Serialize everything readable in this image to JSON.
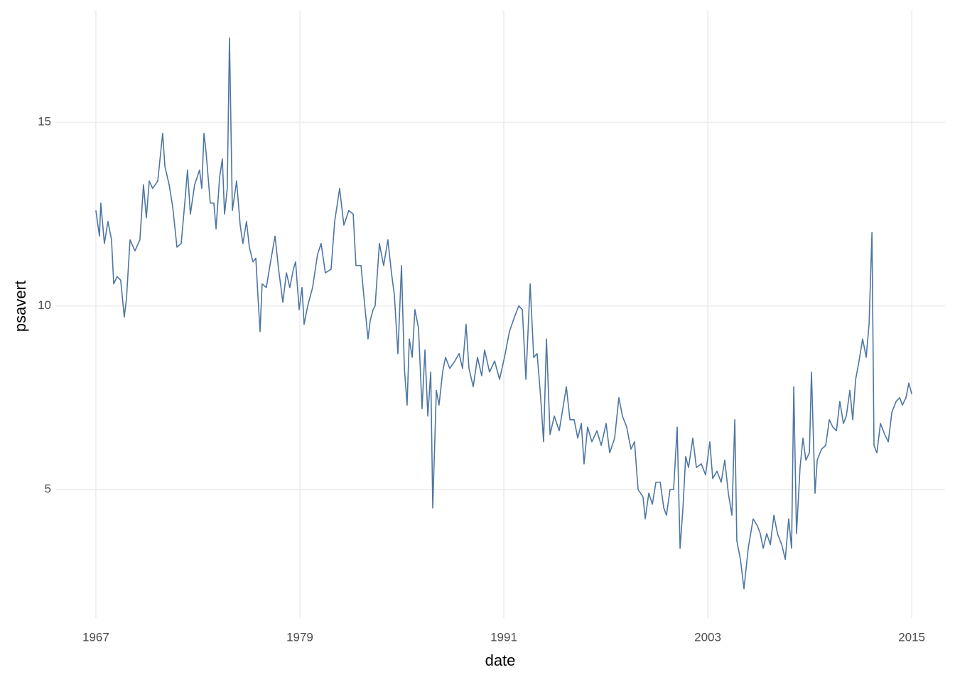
{
  "chart_data": {
    "type": "line",
    "x_label": "date",
    "y_label": "psavert",
    "color": "#4e76a3",
    "xlim": [
      1964.62,
      2016.96
    ],
    "ylim": [
      1.5,
      18.04
    ],
    "xticks": [
      1967,
      1979,
      1991,
      2003,
      2015
    ],
    "yticks": [
      5,
      10,
      15
    ],
    "grid": true,
    "x": [
      1967.0,
      1967.21,
      1967.29,
      1967.5,
      1967.71,
      1967.92,
      1968.05,
      1968.25,
      1968.46,
      1968.67,
      1968.8,
      1969.01,
      1969.3,
      1969.59,
      1969.8,
      1969.97,
      1970.14,
      1970.34,
      1970.64,
      1970.93,
      1971.06,
      1971.31,
      1971.52,
      1971.77,
      1972.02,
      1972.23,
      1972.39,
      1972.56,
      1972.81,
      1973.1,
      1973.23,
      1973.36,
      1973.48,
      1973.73,
      1973.94,
      1974.07,
      1974.28,
      1974.44,
      1974.57,
      1974.73,
      1974.86,
      1975.03,
      1975.28,
      1975.49,
      1975.65,
      1975.86,
      1976.03,
      1976.24,
      1976.41,
      1976.53,
      1976.66,
      1976.78,
      1977.03,
      1977.24,
      1977.54,
      1977.75,
      1978.0,
      1978.21,
      1978.41,
      1978.62,
      1978.75,
      1978.96,
      1979.13,
      1979.25,
      1979.46,
      1979.75,
      1980.04,
      1980.25,
      1980.5,
      1980.84,
      1981.05,
      1981.34,
      1981.59,
      1981.88,
      1982.14,
      1982.3,
      1982.6,
      1982.8,
      1983.01,
      1983.14,
      1983.31,
      1983.43,
      1983.68,
      1983.93,
      1984.18,
      1984.39,
      1984.56,
      1984.77,
      1984.98,
      1985.15,
      1985.31,
      1985.44,
      1985.61,
      1985.77,
      1985.98,
      1986.19,
      1986.36,
      1986.53,
      1986.7,
      1986.82,
      1987.03,
      1987.19,
      1987.4,
      1987.57,
      1987.82,
      1988.12,
      1988.37,
      1988.57,
      1988.78,
      1988.95,
      1989.2,
      1989.45,
      1989.7,
      1989.87,
      1990.16,
      1990.46,
      1990.75,
      1991.04,
      1991.33,
      1991.63,
      1991.88,
      1992.09,
      1992.3,
      1992.55,
      1992.76,
      1992.96,
      1993.17,
      1993.34,
      1993.51,
      1993.72,
      1993.97,
      1994.26,
      1994.47,
      1994.68,
      1994.89,
      1995.14,
      1995.35,
      1995.56,
      1995.72,
      1995.93,
      1996.18,
      1996.48,
      1996.73,
      1997.02,
      1997.23,
      1997.52,
      1997.77,
      1997.98,
      1998.23,
      1998.48,
      1998.69,
      1998.9,
      1999.19,
      1999.32,
      1999.53,
      1999.74,
      1999.95,
      2000.2,
      2000.41,
      2000.57,
      2000.78,
      2000.99,
      2001.2,
      2001.37,
      2001.54,
      2001.7,
      2001.87,
      2002.12,
      2002.33,
      2002.62,
      2002.87,
      2003.12,
      2003.29,
      2003.54,
      2003.79,
      2004.0,
      2004.21,
      2004.42,
      2004.59,
      2004.71,
      2004.92,
      2005.13,
      2005.38,
      2005.67,
      2005.93,
      2006.09,
      2006.26,
      2006.47,
      2006.68,
      2006.89,
      2007.1,
      2007.35,
      2007.56,
      2007.76,
      2007.93,
      2008.06,
      2008.22,
      2008.43,
      2008.6,
      2008.77,
      2008.98,
      2009.1,
      2009.31,
      2009.44,
      2009.69,
      2009.94,
      2010.15,
      2010.36,
      2010.57,
      2010.77,
      2010.98,
      2011.15,
      2011.36,
      2011.53,
      2011.7,
      2011.9,
      2012.11,
      2012.32,
      2012.49,
      2012.66,
      2012.78,
      2012.95,
      2013.16,
      2013.41,
      2013.62,
      2013.83,
      2014.08,
      2014.29,
      2014.45,
      2014.66,
      2014.83,
      2015.0
    ],
    "values": [
      12.6,
      11.9,
      12.8,
      11.7,
      12.3,
      11.8,
      10.6,
      10.8,
      10.7,
      9.7,
      10.2,
      11.8,
      11.5,
      11.8,
      13.3,
      12.4,
      13.4,
      13.2,
      13.4,
      14.7,
      13.8,
      13.3,
      12.7,
      11.6,
      11.7,
      12.8,
      13.7,
      12.5,
      13.3,
      13.7,
      13.2,
      14.7,
      14.2,
      12.8,
      12.8,
      12.1,
      13.5,
      14.0,
      12.5,
      13.2,
      17.3,
      12.6,
      13.4,
      12.2,
      11.7,
      12.3,
      11.6,
      11.2,
      11.3,
      10.3,
      9.3,
      10.6,
      10.5,
      11.1,
      11.9,
      11.0,
      10.1,
      10.9,
      10.5,
      11.0,
      11.2,
      9.9,
      10.5,
      9.5,
      10.0,
      10.5,
      11.4,
      11.7,
      10.9,
      11.0,
      12.3,
      13.2,
      12.2,
      12.6,
      12.5,
      11.1,
      11.1,
      10.1,
      9.1,
      9.6,
      9.9,
      10.0,
      11.7,
      11.1,
      11.8,
      10.9,
      10.3,
      8.7,
      11.1,
      8.3,
      7.3,
      9.1,
      8.6,
      9.9,
      9.4,
      7.2,
      8.8,
      7.0,
      8.2,
      4.5,
      7.7,
      7.3,
      8.2,
      8.6,
      8.3,
      8.5,
      8.7,
      8.3,
      9.5,
      8.3,
      7.8,
      8.6,
      8.1,
      8.8,
      8.2,
      8.5,
      8.0,
      8.6,
      9.3,
      9.7,
      10.0,
      9.9,
      8.0,
      10.6,
      8.6,
      8.7,
      7.5,
      6.3,
      9.1,
      6.5,
      7.0,
      6.6,
      7.2,
      7.8,
      6.9,
      6.9,
      6.4,
      6.8,
      5.7,
      6.7,
      6.3,
      6.6,
      6.2,
      6.8,
      6.0,
      6.4,
      7.5,
      7.0,
      6.7,
      6.1,
      6.3,
      5.0,
      4.8,
      4.2,
      4.9,
      4.6,
      5.2,
      5.2,
      4.5,
      4.3,
      5.0,
      5.0,
      6.7,
      3.4,
      4.5,
      5.9,
      5.6,
      6.4,
      5.6,
      5.7,
      5.4,
      6.3,
      5.3,
      5.5,
      5.2,
      5.8,
      4.9,
      4.3,
      6.9,
      3.6,
      3.1,
      2.3,
      3.4,
      4.2,
      4.0,
      3.8,
      3.4,
      3.8,
      3.5,
      4.3,
      3.8,
      3.5,
      3.1,
      4.2,
      3.4,
      7.8,
      3.8,
      5.6,
      6.4,
      5.8,
      6.0,
      8.2,
      4.9,
      5.8,
      6.1,
      6.2,
      6.9,
      6.7,
      6.6,
      7.4,
      6.8,
      7.0,
      7.7,
      6.9,
      8.0,
      8.5,
      9.1,
      8.6,
      9.5,
      12.0,
      6.2,
      6.0,
      6.8,
      6.5,
      6.3,
      7.1,
      7.4,
      7.5,
      7.3,
      7.5,
      7.9,
      7.6
    ]
  }
}
